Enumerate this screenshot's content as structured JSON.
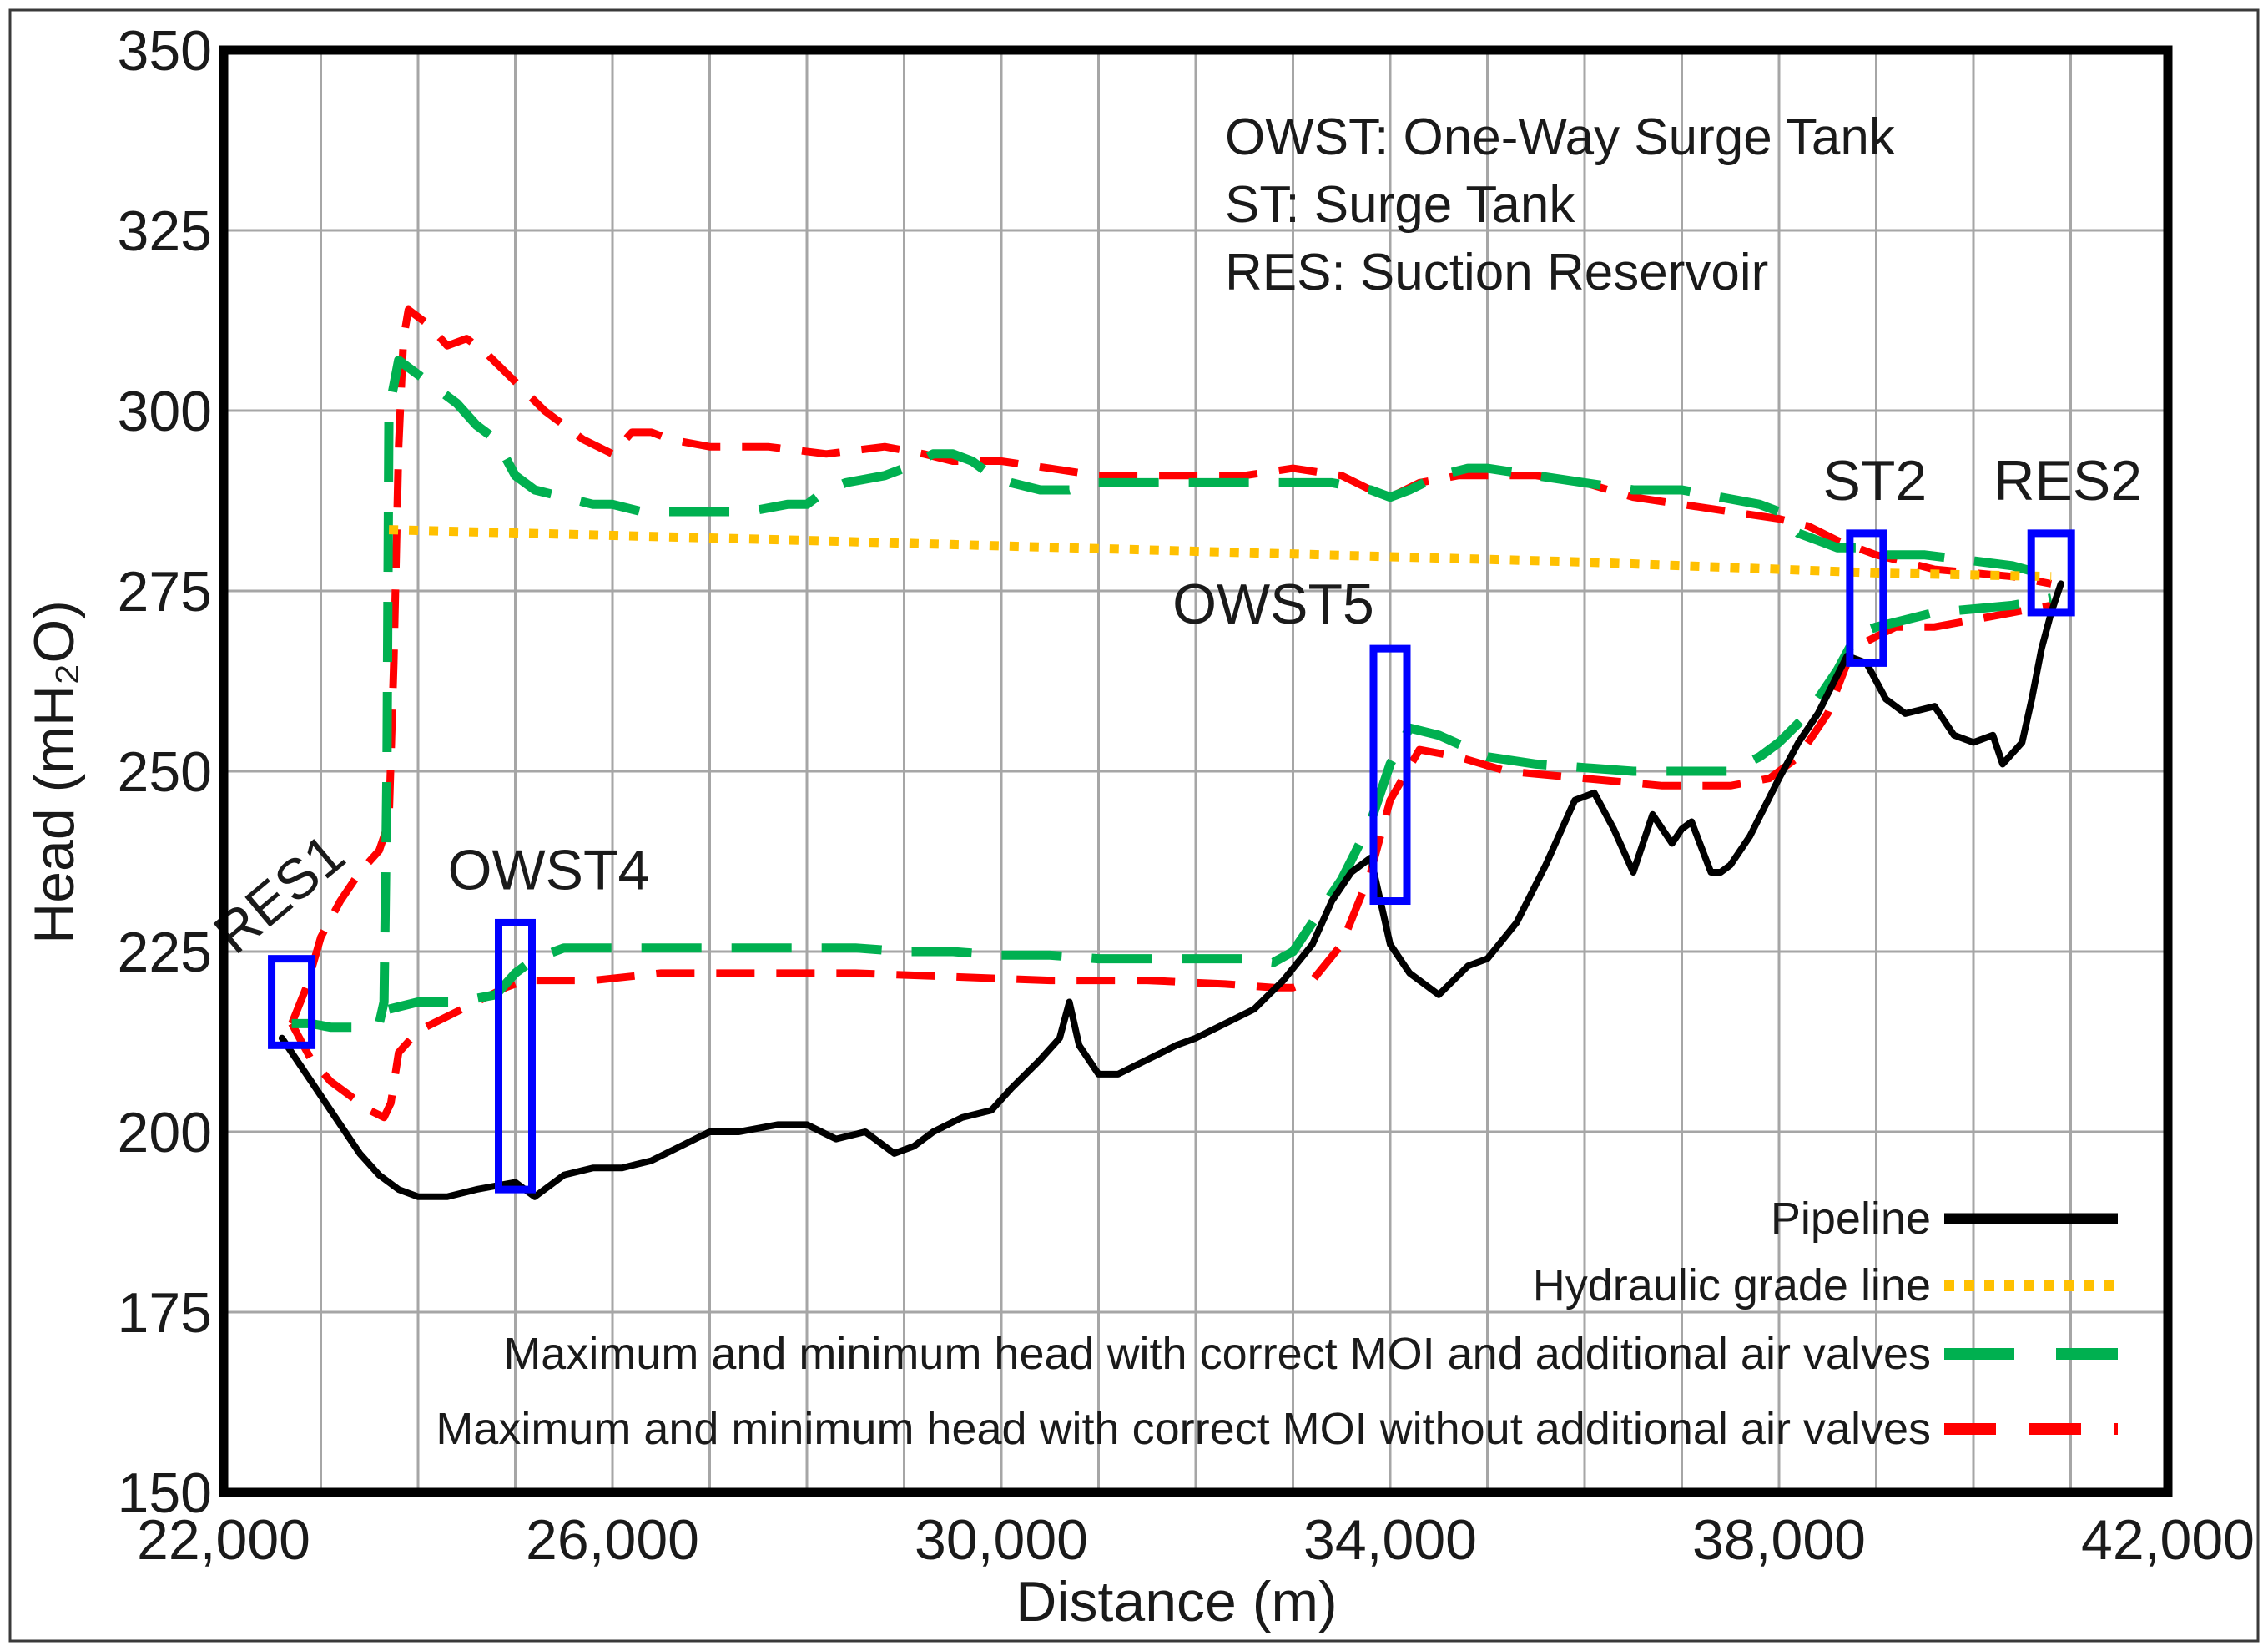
{
  "chart_data": {
    "type": "line",
    "title": "",
    "xlabel": "Distance (m)",
    "ylabel": "Head (mH₂O)",
    "xlim": [
      22000,
      42000
    ],
    "ylim": [
      150,
      350
    ],
    "grid": true,
    "x_ticks": [
      22000,
      24000,
      26000,
      28000,
      30000,
      32000,
      34000,
      36000,
      38000,
      40000,
      42000
    ],
    "x_tick_labels": [
      "22,000",
      "",
      "26,000",
      "",
      "30,000",
      "",
      "34,000",
      "",
      "38,000",
      "",
      "42,000"
    ],
    "y_ticks": [
      150,
      175,
      200,
      225,
      250,
      275,
      300,
      325,
      350
    ],
    "y_tick_labels": [
      "150",
      "175",
      "200",
      "225",
      "250",
      "275",
      "300",
      "325",
      "350"
    ],
    "legend_position": "bottom-right",
    "notes": [
      "OWST: One-Way Surge Tank",
      "ST: Surge Tank",
      "RES: Suction Reservoir"
    ],
    "series": [
      {
        "name": "Pipeline",
        "color": "#000000",
        "style": "solid",
        "x": [
          22600,
          22900,
          23100,
          23400,
          23600,
          23800,
          24000,
          24300,
          24600,
          25000,
          25200,
          25500,
          25800,
          26100,
          26400,
          26700,
          27000,
          27300,
          27700,
          28000,
          28300,
          28600,
          28900,
          29100,
          29300,
          29600,
          29900,
          30100,
          30400,
          30600,
          30700,
          30800,
          31000,
          31200,
          31500,
          31800,
          32000,
          32300,
          32600,
          32900,
          33200,
          33400,
          33600,
          33800,
          34000,
          34200,
          34500,
          34800,
          35000,
          35300,
          35600,
          35900,
          36100,
          36300,
          36500,
          36600,
          36700,
          36900,
          37000,
          37100,
          37300,
          37400,
          37500,
          37700,
          38000,
          38200,
          38400,
          38700,
          38900,
          39100,
          39300,
          39600,
          39800,
          40000,
          40200,
          40300,
          40500,
          40600,
          40700,
          40800,
          40900
        ],
        "y": [
          213,
          207,
          203,
          197,
          194,
          192,
          191,
          191,
          192,
          193,
          191,
          194,
          195,
          195,
          196,
          198,
          200,
          200,
          201,
          201,
          199,
          200,
          197,
          198,
          200,
          202,
          203,
          206,
          210,
          213,
          218,
          212,
          208,
          208,
          210,
          212,
          213,
          215,
          217,
          221,
          226,
          232,
          236,
          238,
          226,
          222,
          219,
          223,
          224,
          229,
          237,
          246,
          247,
          242,
          236,
          240,
          244,
          240,
          242,
          243,
          236,
          236,
          237,
          241,
          249,
          254,
          258,
          266,
          265,
          260,
          258,
          259,
          255,
          254,
          255,
          251,
          254,
          260,
          267,
          272,
          276
        ]
      },
      {
        "name": "Hydraulic grade line",
        "color": "#ffc000",
        "style": "dotted",
        "x": [
          23700,
          28000,
          32000,
          36000,
          39000,
          40800
        ],
        "y": [
          283.5,
          282,
          280.5,
          279,
          277.5,
          277
        ]
      },
      {
        "name": "Maximum and minimum head with correct MOI and additional air valves",
        "color": "#00b050",
        "style": "long-dash",
        "groups": [
          {
            "x": [
              22700,
              22900,
              23100,
              23500,
              23600,
              23650,
              23680,
              23700,
              23800,
              24000,
              24200,
              24400,
              24600,
              24800,
              25000,
              25200,
              25500,
              25800,
              26000,
              26300,
              26600,
              27000,
              27400,
              27800,
              28000,
              28200,
              28400,
              28800,
              29000,
              29300,
              29500,
              29700,
              29900,
              30100,
              30400,
              30700,
              31000,
              31400,
              32000,
              32400,
              33000,
              33400,
              33800,
              34000,
              34200,
              34500,
              34800,
              35000,
              35500,
              36000,
              36500,
              37000,
              37400,
              37800,
              38000,
              38200,
              38400,
              38600,
              38800,
              39000,
              39200,
              39500,
              39800,
              40100,
              40400,
              40800
            ],
            "y": [
              215,
              215,
              214.5,
              214.5,
              215,
              218,
              250,
              300,
              307,
              305,
              303,
              301,
              298,
              296,
              291,
              289,
              288,
              287,
              287,
              286,
              286,
              286,
              286,
              287,
              287,
              289,
              290,
              291,
              292,
              294,
              294,
              293,
              291,
              290,
              289,
              289,
              290,
              290,
              290,
              290,
              290,
              290,
              289,
              288,
              289,
              291,
              292,
              292,
              291,
              290,
              289,
              289,
              288,
              287,
              286,
              283,
              282,
              281,
              281,
              280,
              280,
              280,
              279.5,
              279,
              278.5,
              277
            ]
          },
          {
            "x": [
              23700,
              24000,
              24400,
              24800,
              25000,
              25200,
              25500,
              26000,
              26500,
              27000,
              27500,
              28000,
              28500,
              29000,
              29500,
              30000,
              30500,
              31000,
              31500,
              32000,
              32500,
              32800,
              33000,
              33200,
              33500,
              33800,
              34000,
              34200,
              34500,
              35000,
              35500,
              36000,
              36500,
              37000,
              37500,
              37800,
              38000,
              38300,
              38600,
              38800,
              39000,
              39300,
              39600,
              40000,
              40400,
              40800
            ],
            "y": [
              217,
              218,
              218,
              219,
              222,
              224,
              225.5,
              225.5,
              225.5,
              225.5,
              225.5,
              225.5,
              225.5,
              225,
              225,
              224.5,
              224.5,
              224,
              224,
              224,
              224,
              223.5,
              225,
              229,
              235,
              243,
              251,
              256,
              255,
              252,
              251,
              250.5,
              250,
              250,
              250,
              252,
              254,
              258,
              264,
              269,
              270,
              271,
              272,
              272.5,
              273,
              274
            ]
          }
        ]
      },
      {
        "name": "Maximum and minimum head with correct MOI without additional air valves",
        "color": "#ff0000",
        "style": "dashed",
        "groups": [
          {
            "x": [
              22700,
              22850,
              23000,
              23200,
              23400,
              23600,
              23700,
              23750,
              23800,
              23850,
              23900,
              24100,
              24300,
              24500,
              24700,
              25000,
              25300,
              25700,
              26000,
              26200,
              26400,
              26600,
              27000,
              27600,
              28200,
              28800,
              29200,
              29500,
              30000,
              30500,
              31000,
              31500,
              32000,
              32500,
              33000,
              33500,
              33800,
              34000,
              34300,
              34700,
              35000,
              35500,
              36000,
              36500,
              37000,
              37500,
              38000,
              38300,
              38600,
              38800,
              39000,
              39300,
              39600,
              40000,
              40400,
              40800
            ],
            "y": [
              215,
              220,
              227,
              232,
              236,
              239,
              243,
              265,
              295,
              310,
              314,
              312,
              309,
              310,
              308,
              304,
              300,
              296,
              294,
              297,
              297,
              296,
              295,
              295,
              294,
              295,
              294,
              293,
              293,
              292,
              291,
              291,
              291,
              291,
              292,
              291,
              289,
              288,
              290,
              291,
              291,
              291,
              290,
              288,
              287,
              286,
              285,
              284,
              282,
              281,
              280,
              279,
              278,
              277.5,
              277,
              276
            ]
          },
          {
            "x": [
              22700,
              22900,
              23100,
              23300,
              23500,
              23650,
              23720,
              23800,
              24000,
              24300,
              24600,
              24900,
              25100,
              25400,
              25800,
              26500,
              27500,
              28500,
              29500,
              30500,
              31500,
              32300,
              32800,
              33000,
              33200,
              33500,
              33800,
              34000,
              34300,
              34700,
              35200,
              36000,
              36800,
              37500,
              37900,
              38200,
              38500,
              38700,
              38900,
              39200,
              39600,
              40000,
              40400,
              40800
            ],
            "y": [
              215,
              210,
              207,
              205,
              203,
              202,
              204,
              211,
              214,
              216,
              218,
              220,
              221,
              221,
              221,
              222,
              222,
              222,
              221.5,
              221,
              221,
              220.5,
              220,
              220,
              221,
              226,
              236,
              246,
              253,
              252,
              250,
              249,
              248,
              248,
              249,
              252,
              258,
              265,
              268,
              270,
              270,
              271,
              272,
              273
            ]
          }
        ]
      }
    ],
    "annotations": [
      {
        "label": "RES1",
        "x": 22700,
        "y_min": 212,
        "y_max": 224
      },
      {
        "label": "OWST4",
        "x": 25000,
        "y_min": 192,
        "y_max": 229
      },
      {
        "label": "OWST5",
        "x": 34000,
        "y_min": 232,
        "y_max": 267
      },
      {
        "label": "ST2",
        "x": 38900,
        "y_min": 265,
        "y_max": 283
      },
      {
        "label": "RES2",
        "x": 40800,
        "y_min": 272,
        "y_max": 283
      }
    ]
  }
}
